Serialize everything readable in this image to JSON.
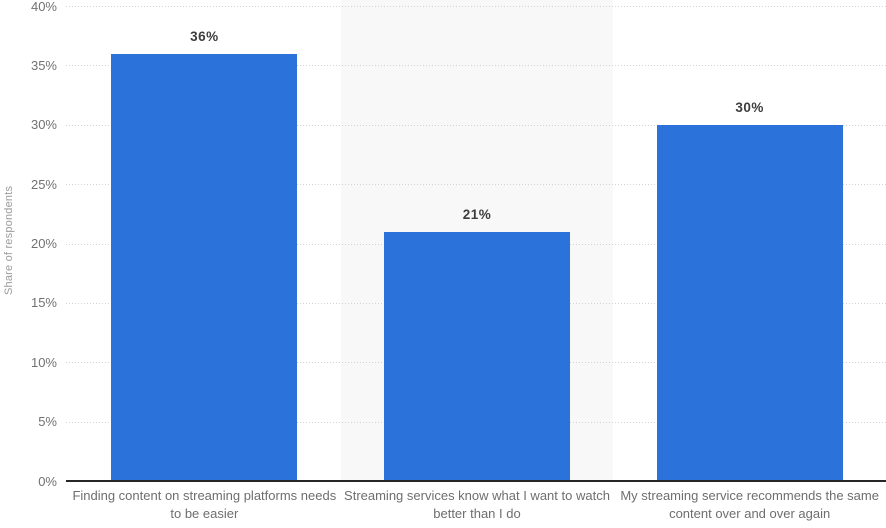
{
  "chart_data": {
    "type": "bar",
    "title": "",
    "ylabel": "Share of respondents",
    "xlabel": "",
    "categories": [
      "Finding content on streaming platforms needs to be easier",
      "Streaming services know what I want to watch better than I do",
      "My streaming service recommends the same content over and over again"
    ],
    "values": [
      36,
      21,
      30
    ],
    "value_labels": [
      "36%",
      "21%",
      "30%"
    ],
    "ylim": [
      0,
      40
    ],
    "ytick_values": [
      0,
      5,
      10,
      15,
      20,
      25,
      30,
      35,
      40
    ],
    "ytick_labels": [
      "0%",
      "5%",
      "10%",
      "15%",
      "20%",
      "25%",
      "30%",
      "35%",
      "40%"
    ],
    "grid": "horizontal-dotted",
    "legend": "none",
    "colors": {
      "bar": "#2b72da",
      "alt_plot_band": "#f8f8f8",
      "gridline": "#d2d2d2",
      "axis_line": "#262626",
      "tick_text": "#717171",
      "value_text": "#3d3d3d",
      "category_text": "#6e6e6e",
      "y_title_text": "#9b9b9b"
    }
  }
}
